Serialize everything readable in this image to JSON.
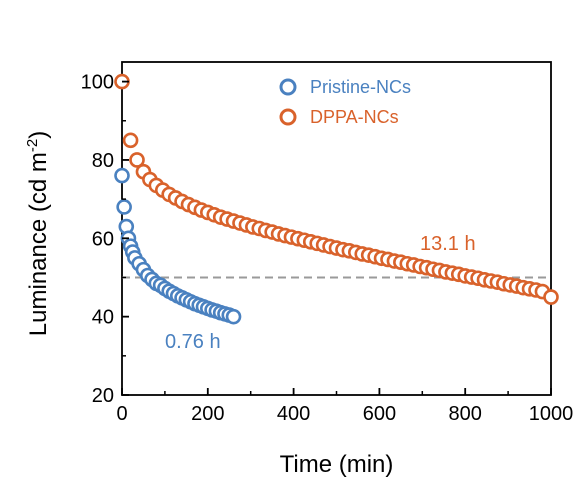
{
  "chart_data": {
    "type": "scatter",
    "xlabel": "Time (min)",
    "ylabel": "Luminance (cd m",
    "ylabel_sup": "-2",
    "ylabel_close": ")",
    "xlim": [
      0,
      1000
    ],
    "ylim": [
      20,
      105
    ],
    "xticks": [
      0,
      200,
      400,
      600,
      800,
      1000
    ],
    "xticklabels": [
      "0",
      "200",
      "400",
      "600",
      "800",
      "1000"
    ],
    "yticks": [
      20,
      40,
      60,
      80,
      100
    ],
    "yticklabels": [
      "20",
      "40",
      "60",
      "80",
      "100"
    ],
    "grid": false,
    "legend_position": "top-right",
    "reference_line": {
      "y": 50,
      "style": "dashed",
      "color": "#9a9a9a"
    },
    "series": [
      {
        "name": "Pristine-NCs",
        "color": "#4a81c0",
        "marker": "open-circle",
        "x": [
          0,
          5,
          10,
          15,
          20,
          25,
          30,
          40,
          50,
          60,
          70,
          80,
          90,
          100,
          110,
          120,
          130,
          140,
          150,
          160,
          170,
          180,
          190,
          200,
          210,
          220,
          230,
          240,
          250,
          260
        ],
        "y": [
          76,
          68,
          63,
          60,
          58,
          56.5,
          55,
          53.5,
          52,
          50.5,
          49.5,
          48.5,
          48,
          47.2,
          46.5,
          45.9,
          45.3,
          44.8,
          44.3,
          43.8,
          43.3,
          42.9,
          42.5,
          42.1,
          41.7,
          41.4,
          41.0,
          40.7,
          40.4,
          40.0
        ]
      },
      {
        "name": "DPPA-NCs",
        "color": "#d9622b",
        "marker": "open-circle",
        "x": [
          0,
          20,
          35,
          50,
          65,
          80,
          95,
          110,
          125,
          140,
          155,
          170,
          185,
          200,
          215,
          230,
          245,
          260,
          275,
          290,
          305,
          320,
          335,
          350,
          365,
          380,
          395,
          410,
          425,
          440,
          455,
          470,
          485,
          500,
          515,
          530,
          545,
          560,
          575,
          590,
          605,
          620,
          635,
          650,
          665,
          680,
          695,
          710,
          725,
          740,
          755,
          770,
          785,
          800,
          815,
          830,
          845,
          860,
          875,
          890,
          905,
          920,
          935,
          950,
          965,
          980,
          1000
        ],
        "y": [
          100,
          85,
          80,
          77,
          75,
          73.5,
          72.3,
          71.2,
          70.3,
          69.4,
          68.6,
          67.9,
          67.2,
          66.6,
          66.0,
          65.4,
          64.9,
          64.4,
          63.9,
          63.4,
          62.9,
          62.5,
          62.0,
          61.6,
          61.1,
          60.7,
          60.3,
          59.9,
          59.5,
          59.1,
          58.7,
          58.3,
          57.9,
          57.5,
          57.1,
          56.8,
          56.4,
          56.0,
          55.7,
          55.3,
          54.9,
          54.6,
          54.2,
          53.9,
          53.5,
          53.2,
          52.8,
          52.5,
          52.1,
          51.8,
          51.4,
          51.1,
          50.8,
          50.4,
          50.1,
          49.8,
          49.4,
          49.1,
          48.8,
          48.4,
          48.1,
          47.8,
          47.4,
          47.1,
          46.8,
          46.4,
          45
        ]
      }
    ],
    "annotations": [
      {
        "text": "0.76 h",
        "color": "#4a81c0"
      },
      {
        "text": "13.1 h",
        "color": "#d9622b"
      }
    ]
  }
}
